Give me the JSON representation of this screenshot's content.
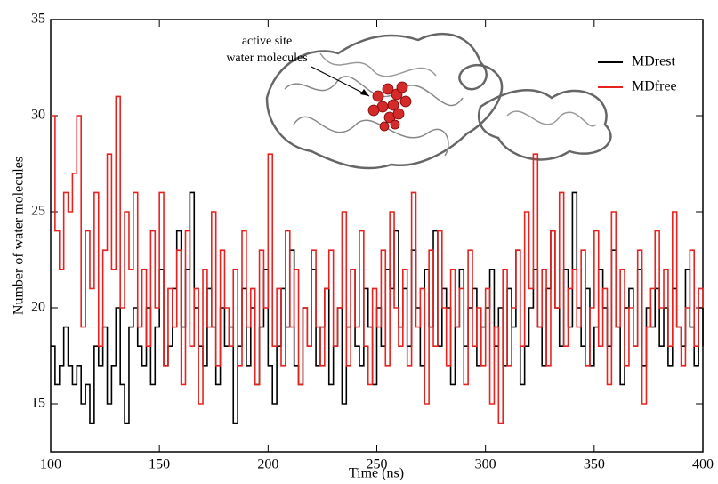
{
  "chart_data": {
    "type": "step",
    "x_label": "Time (ns)",
    "y_label": "Number of water molecules",
    "annotations": [
      "active site",
      "water molecules"
    ],
    "xlim": [
      100,
      400
    ],
    "xticks": [
      100,
      150,
      200,
      250,
      300,
      350,
      400
    ],
    "ylim": [
      12.5,
      35
    ],
    "yticks": [
      15,
      20,
      25,
      30,
      35
    ],
    "legend": "upper right",
    "x": [
      100,
      102,
      104,
      106,
      108,
      110,
      112,
      114,
      116,
      118,
      120,
      122,
      124,
      126,
      128,
      130,
      132,
      134,
      136,
      138,
      140,
      142,
      144,
      146,
      148,
      150,
      152,
      154,
      156,
      158,
      160,
      162,
      164,
      166,
      168,
      170,
      172,
      174,
      176,
      178,
      180,
      182,
      184,
      186,
      188,
      190,
      192,
      194,
      196,
      198,
      200,
      202,
      204,
      206,
      208,
      210,
      212,
      214,
      216,
      218,
      220,
      222,
      224,
      226,
      228,
      230,
      232,
      234,
      236,
      238,
      240,
      242,
      244,
      246,
      248,
      250,
      252,
      254,
      256,
      258,
      260,
      262,
      264,
      266,
      268,
      270,
      272,
      274,
      276,
      278,
      280,
      282,
      284,
      286,
      288,
      290,
      292,
      294,
      296,
      298,
      300,
      302,
      304,
      306,
      308,
      310,
      312,
      314,
      316,
      318,
      320,
      322,
      324,
      326,
      328,
      330,
      332,
      334,
      336,
      338,
      340,
      342,
      344,
      346,
      348,
      350,
      352,
      354,
      356,
      358,
      360,
      362,
      364,
      366,
      368,
      370,
      372,
      374,
      376,
      378,
      380,
      382,
      384,
      386,
      388,
      390,
      392,
      394,
      396,
      398,
      400
    ],
    "series": [
      {
        "name": "MDrest",
        "color": "#000000",
        "values": [
          18,
          16,
          17,
          19,
          17,
          16,
          17,
          15,
          16,
          14,
          18,
          17,
          19,
          15,
          17,
          20,
          16,
          14,
          19,
          20,
          18,
          17,
          20,
          16,
          19,
          22,
          17,
          18,
          21,
          24,
          19,
          22,
          26,
          20,
          18,
          17,
          21,
          19,
          16,
          20,
          18,
          19,
          14,
          18,
          21,
          17,
          20,
          16,
          19,
          22,
          17,
          15,
          18,
          21,
          19,
          23,
          17,
          16,
          20,
          18,
          22,
          17,
          19,
          21,
          16,
          18,
          20,
          15,
          19,
          22,
          18,
          17,
          21,
          19,
          16,
          20,
          18,
          22,
          21,
          24,
          19,
          21,
          18,
          23,
          20,
          17,
          22,
          19,
          24,
          18,
          21,
          20,
          16,
          19,
          22,
          18,
          20,
          21,
          17,
          19,
          20,
          22,
          18,
          20,
          17,
          21,
          19,
          23,
          16,
          18,
          20,
          22,
          19,
          17,
          21,
          24,
          20,
          18,
          22,
          19,
          26,
          20,
          18,
          21,
          17,
          19,
          22,
          20,
          18,
          23,
          19,
          16,
          20,
          21,
          18,
          22,
          17,
          20,
          19,
          21,
          18,
          20,
          17,
          21,
          19,
          18,
          22,
          19,
          17,
          20,
          18
        ]
      },
      {
        "name": "MDfree",
        "color": "#e8231f",
        "values": [
          30,
          24,
          22,
          26,
          25,
          27,
          30,
          19,
          24,
          21,
          26,
          18,
          23,
          28,
          22,
          31,
          20,
          25,
          22,
          26,
          19,
          22,
          18,
          24,
          20,
          26,
          17,
          21,
          19,
          23,
          16,
          24,
          18,
          21,
          15,
          22,
          19,
          25,
          17,
          23,
          20,
          18,
          22,
          17,
          24,
          19,
          21,
          16,
          23,
          20,
          28,
          18,
          21,
          17,
          24,
          19,
          22,
          16,
          20,
          18,
          23,
          19,
          17,
          21,
          23,
          18,
          20,
          25,
          17,
          22,
          19,
          24,
          18,
          16,
          21,
          19,
          23,
          17,
          25,
          20,
          18,
          22,
          17,
          26,
          19,
          21,
          15,
          23,
          18,
          24,
          20,
          17,
          22,
          19,
          21,
          16,
          23,
          18,
          20,
          17,
          21,
          15,
          19,
          14,
          22,
          17,
          20,
          23,
          18,
          25,
          21,
          28,
          19,
          22,
          17,
          24,
          20,
          26,
          18,
          21,
          22,
          19,
          23,
          17,
          20,
          24,
          18,
          21,
          16,
          25,
          19,
          22,
          17,
          20,
          18,
          23,
          15,
          19,
          21,
          24,
          20,
          22,
          18,
          25,
          19,
          17,
          20,
          23,
          18,
          21,
          20
        ]
      }
    ]
  }
}
